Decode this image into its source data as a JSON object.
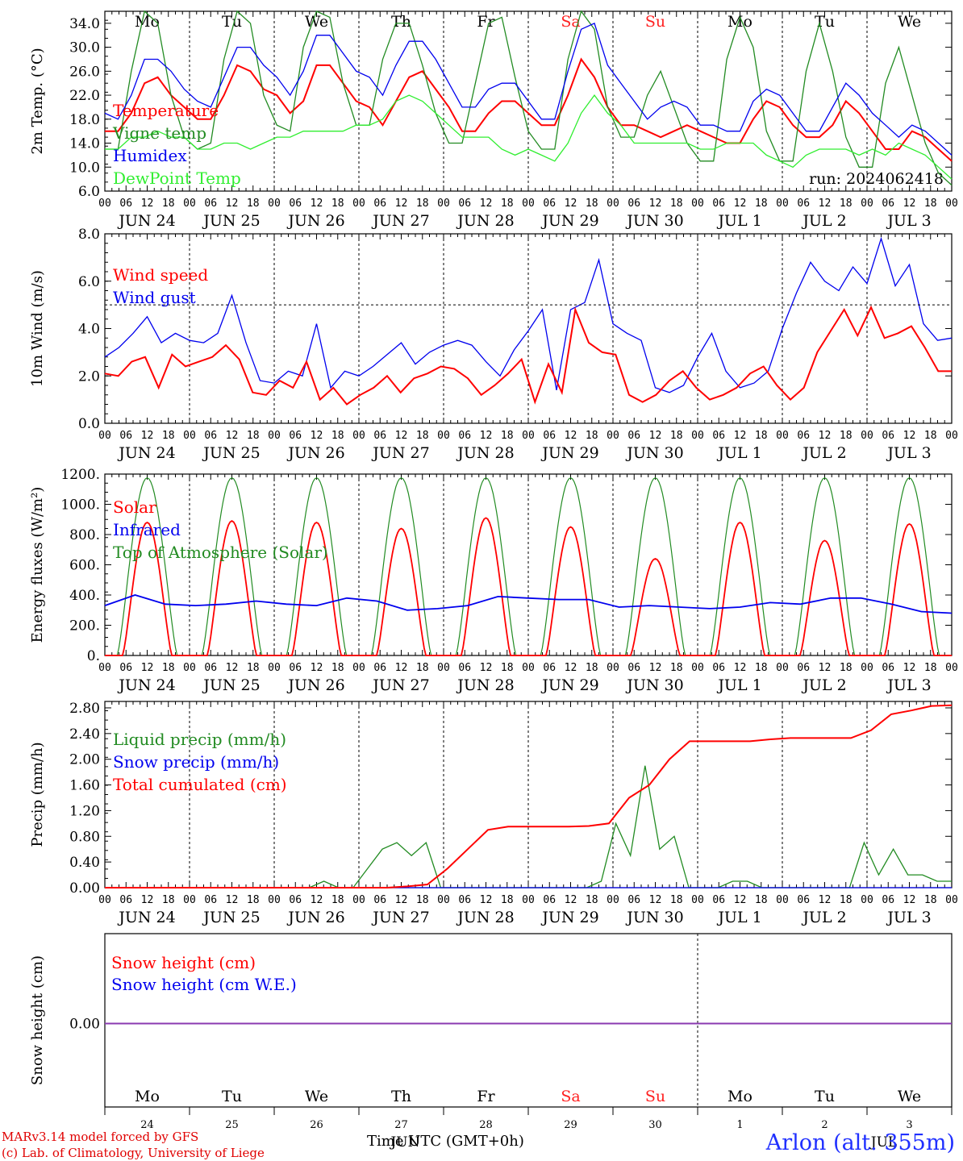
{
  "chart_data": [
    {
      "type": "line",
      "ylabel": "2m Temp. (°C)",
      "yticks": [
        "6.0",
        "10.0",
        "14.0",
        "18.0",
        "22.0",
        "26.0",
        "30.0",
        "34.0"
      ],
      "ylim": [
        6,
        36
      ],
      "run_label": "run: 2024062418",
      "weekday_labels": [
        {
          "label": "Mo",
          "color": "#000000"
        },
        {
          "label": "Tu",
          "color": "#000000"
        },
        {
          "label": "We",
          "color": "#000000"
        },
        {
          "label": "Th",
          "color": "#000000"
        },
        {
          "label": "Fr",
          "color": "#000000"
        },
        {
          "label": "Sa",
          "color": "#ff2020"
        },
        {
          "label": "Su",
          "color": "#ff2020"
        },
        {
          "label": "Mo",
          "color": "#000000"
        },
        {
          "label": "Tu",
          "color": "#000000"
        },
        {
          "label": "We",
          "color": "#000000"
        }
      ],
      "series": [
        {
          "name": "Temperature",
          "color": "#ff0000",
          "values": [
            16,
            16,
            19,
            24,
            25,
            22,
            20,
            18,
            18,
            22,
            27,
            26,
            23,
            22,
            19,
            21,
            27,
            27,
            24,
            21,
            20,
            17,
            21,
            25,
            26,
            23,
            20,
            16,
            16,
            19,
            21,
            21,
            19,
            17,
            17,
            22,
            28,
            25,
            20,
            17,
            17,
            16,
            15,
            16,
            17,
            16,
            15,
            14,
            14,
            18,
            21,
            20,
            17,
            15,
            15,
            17,
            21,
            19,
            16,
            13,
            13,
            16,
            15,
            13,
            11
          ]
        },
        {
          "name": "Vigne temp",
          "color": "#228B22",
          "values": [
            13,
            13,
            26,
            36,
            34,
            22,
            15,
            13,
            14,
            28,
            37,
            34,
            22,
            17,
            16,
            30,
            36,
            35,
            24,
            17,
            17,
            28,
            34,
            34,
            27,
            19,
            14,
            14,
            24,
            34,
            35,
            25,
            16,
            13,
            13,
            28,
            36,
            33,
            20,
            15,
            15,
            22,
            26,
            20,
            14,
            11,
            11,
            28,
            35,
            30,
            16,
            11,
            11,
            26,
            34,
            26,
            15,
            10,
            10,
            24,
            30,
            22,
            14,
            9,
            7
          ]
        },
        {
          "name": "Humidex",
          "color": "#0000ee",
          "values": [
            19,
            18,
            22,
            28,
            28,
            26,
            23,
            21,
            20,
            25,
            30,
            30,
            27,
            25,
            22,
            26,
            32,
            32,
            29,
            26,
            25,
            22,
            27,
            31,
            31,
            28,
            24,
            20,
            20,
            23,
            24,
            24,
            21,
            18,
            18,
            26,
            33,
            34,
            27,
            24,
            21,
            18,
            20,
            21,
            20,
            17,
            17,
            16,
            16,
            21,
            23,
            22,
            19,
            16,
            16,
            20,
            24,
            22,
            19,
            17,
            15,
            17,
            16,
            14,
            12
          ]
        },
        {
          "name": "DewPoint Temp",
          "color": "#30ee30",
          "values": [
            13,
            13,
            15,
            15,
            16,
            15,
            15,
            13,
            13,
            14,
            14,
            13,
            14,
            15,
            15,
            16,
            16,
            16,
            16,
            17,
            17,
            18,
            21,
            22,
            21,
            19,
            17,
            15,
            15,
            15,
            13,
            12,
            13,
            12,
            11,
            14,
            19,
            22,
            19,
            17,
            14,
            14,
            14,
            14,
            14,
            13,
            13,
            14,
            14,
            14,
            12,
            11,
            10,
            12,
            13,
            13,
            13,
            12,
            13,
            12,
            14,
            13,
            12,
            10,
            8
          ]
        }
      ]
    },
    {
      "type": "line",
      "ylabel": "10m Wind (m/s)",
      "yticks": [
        "0.0",
        "2.0",
        "4.0",
        "6.0",
        "8.0"
      ],
      "ylim": [
        0,
        8
      ],
      "reference_line": 5,
      "series": [
        {
          "name": "Wind speed",
          "color": "#ff0000",
          "values": [
            2.1,
            2.0,
            2.6,
            2.8,
            1.5,
            2.9,
            2.4,
            2.6,
            2.8,
            3.3,
            2.7,
            1.3,
            1.2,
            1.8,
            1.5,
            2.6,
            1.0,
            1.5,
            0.8,
            1.2,
            1.5,
            2.0,
            1.3,
            1.9,
            2.1,
            2.4,
            2.3,
            1.9,
            1.2,
            1.6,
            2.1,
            2.7,
            0.9,
            2.5,
            1.3,
            4.8,
            3.4,
            3.0,
            2.9,
            1.2,
            0.9,
            1.2,
            1.8,
            2.2,
            1.5,
            1.0,
            1.2,
            1.5,
            2.1,
            2.4,
            1.6,
            1.0,
            1.5,
            3.0,
            3.9,
            4.8,
            3.7,
            4.9,
            3.6,
            3.8,
            4.1,
            3.2,
            2.2,
            2.2
          ]
        },
        {
          "name": "Wind gust",
          "color": "#0000ee",
          "values": [
            2.8,
            3.2,
            3.8,
            4.5,
            3.4,
            3.8,
            3.5,
            3.4,
            3.8,
            5.4,
            3.4,
            1.8,
            1.7,
            2.2,
            2.0,
            4.2,
            1.5,
            2.2,
            2.0,
            2.4,
            2.9,
            3.4,
            2.5,
            3.0,
            3.3,
            3.5,
            3.3,
            2.6,
            2.0,
            3.1,
            3.9,
            4.8,
            1.4,
            4.8,
            5.1,
            6.9,
            4.2,
            3.8,
            3.5,
            1.5,
            1.3,
            1.6,
            2.8,
            3.8,
            2.2,
            1.5,
            1.7,
            2.2,
            4.0,
            5.5,
            6.8,
            6.0,
            5.6,
            6.6,
            5.9,
            7.8,
            5.8,
            6.7,
            4.2,
            3.5,
            3.6
          ]
        }
      ]
    },
    {
      "type": "line",
      "ylabel": "Energy fluxes (W/m²)",
      "yticks": [
        "0.",
        "200.",
        "400.",
        "600.",
        "800.",
        "1000.",
        "1200."
      ],
      "ylim": [
        0,
        1200
      ],
      "series": [
        {
          "name": "Solar",
          "color": "#ff0000",
          "values": [
            880,
            890,
            880,
            840,
            910,
            850,
            640,
            880,
            760,
            870
          ]
        },
        {
          "name": "Infrared",
          "color": "#0000ee",
          "values": [
            330,
            400,
            340,
            330,
            340,
            360,
            340,
            330,
            380,
            360,
            300,
            310,
            330,
            390,
            380,
            370,
            370,
            320,
            330,
            320,
            310,
            320,
            350,
            340,
            380,
            380,
            340,
            290,
            280
          ]
        },
        {
          "name": "Top of Atmosphere (Solar)",
          "color": "#228B22",
          "values": [
            1175,
            1175,
            1175,
            1175,
            1175,
            1175,
            1175,
            1175,
            1175,
            1175
          ]
        }
      ]
    },
    {
      "type": "line",
      "ylabel": "Precip (mm/h)",
      "yticks": [
        "0.00",
        "0.40",
        "0.80",
        "1.20",
        "1.60",
        "2.00",
        "2.40",
        "2.80"
      ],
      "ylim": [
        0,
        2.9
      ],
      "series": [
        {
          "name": "Liquid precip (mm/h)",
          "color": "#228B22",
          "values": [
            0,
            0,
            0,
            0,
            0,
            0,
            0,
            0,
            0,
            0,
            0,
            0,
            0,
            0,
            0,
            0.1,
            0,
            0,
            0.3,
            0.6,
            0.7,
            0.5,
            0.7,
            0,
            0,
            0,
            0,
            0,
            0,
            0,
            0,
            0,
            0,
            0,
            0.1,
            1.0,
            0.5,
            1.9,
            0.6,
            0.8,
            0,
            0,
            0,
            0.1,
            0.1,
            0,
            0,
            0,
            0,
            0,
            0,
            0,
            0.7,
            0.2,
            0.6,
            0.2,
            0.2,
            0.1,
            0.1
          ]
        },
        {
          "name": "Snow precip (mm/h)",
          "color": "#0000ee",
          "values": [
            0,
            0,
            0,
            0,
            0,
            0,
            0,
            0,
            0,
            0
          ]
        },
        {
          "name": "Total cumulated (cm)",
          "color": "#ff0000",
          "values": [
            0,
            0,
            0,
            0,
            0,
            0,
            0,
            0,
            0,
            0,
            0,
            0,
            0,
            0,
            0,
            0.02,
            0.05,
            0.3,
            0.6,
            0.9,
            0.95,
            0.95,
            0.95,
            0.95,
            0.96,
            1.0,
            1.4,
            1.6,
            2.0,
            2.28,
            2.28,
            2.28,
            2.28,
            2.31,
            2.33,
            2.33,
            2.33,
            2.33,
            2.45,
            2.7,
            2.76,
            2.83,
            2.84
          ]
        }
      ]
    },
    {
      "type": "line",
      "ylabel": "Snow height (cm)",
      "yticks": [
        "0.00"
      ],
      "series": [
        {
          "name": "Snow height (cm)",
          "color": "#ff0000",
          "values": [
            0,
            0
          ]
        },
        {
          "name": "Snow height (cm W.E.)",
          "color": "#0000ee",
          "values": [
            0,
            0
          ]
        }
      ]
    }
  ],
  "x_axis": {
    "hour_ticks": [
      "00",
      "06",
      "12",
      "18"
    ],
    "final_hour_tick": "00",
    "date_labels": [
      "JUN 24",
      "JUN 25",
      "JUN 26",
      "JUN 27",
      "JUN 28",
      "JUN 29",
      "JUN 30",
      "JUL  1",
      "JUL  2",
      "JUL  3"
    ],
    "bottom_day_numbers": [
      "24",
      "25",
      "26",
      "27",
      "28",
      "29",
      "30",
      "1",
      "2",
      "3"
    ],
    "bottom_weekdays": [
      {
        "label": "Mo",
        "color": "#000000"
      },
      {
        "label": "Tu",
        "color": "#000000"
      },
      {
        "label": "We",
        "color": "#000000"
      },
      {
        "label": "Th",
        "color": "#000000"
      },
      {
        "label": "Fr",
        "color": "#000000"
      },
      {
        "label": "Sa",
        "color": "#ff2020"
      },
      {
        "label": "Su",
        "color": "#ff2020"
      },
      {
        "label": "Mo",
        "color": "#000000"
      },
      {
        "label": "Tu",
        "color": "#000000"
      },
      {
        "label": "We",
        "color": "#000000"
      }
    ],
    "bottom_month_label": "JUL",
    "bottom_month_label_jun": "JUN"
  },
  "footer": {
    "model_line": "MARv3.14 model forced by GFS",
    "lab_line": "(c) Lab. of Climatology, University of Liege",
    "time_axis_label": "Time UTC (GMT+0h)",
    "place": "Arlon (alt. 355m)"
  }
}
